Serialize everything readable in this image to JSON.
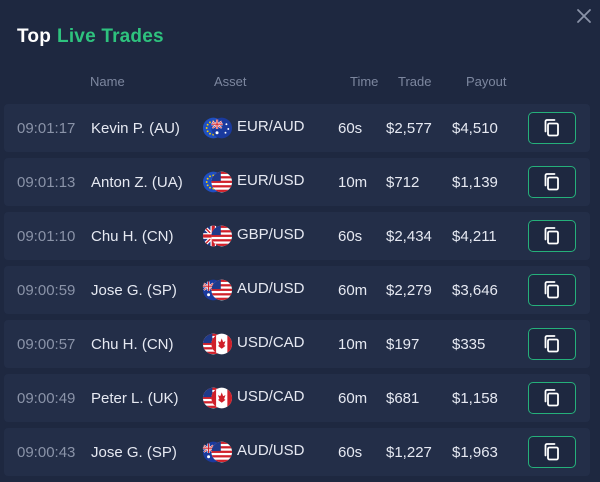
{
  "header": {
    "title_part1": "Top",
    "title_part2": "Live Trades"
  },
  "columns": {
    "name": "Name",
    "asset": "Asset",
    "time": "Time",
    "trade": "Trade",
    "payout": "Payout"
  },
  "rows": [
    {
      "time": "09:01:17",
      "name": "Kevin P. (AU)",
      "asset": "EUR/AUD",
      "duration": "60s",
      "trade": "$2,577",
      "payout": "$4,510",
      "flag_icon": "eur-aud-flag-icon"
    },
    {
      "time": "09:01:13",
      "name": "Anton Z. (UA)",
      "asset": "EUR/USD",
      "duration": "10m",
      "trade": "$712",
      "payout": "$1,139",
      "flag_icon": "eur-usd-flag-icon"
    },
    {
      "time": "09:01:10",
      "name": "Chu H. (CN)",
      "asset": "GBP/USD",
      "duration": "60s",
      "trade": "$2,434",
      "payout": "$4,211",
      "flag_icon": "gbp-usd-flag-icon"
    },
    {
      "time": "09:00:59",
      "name": "Jose G. (SP)",
      "asset": "AUD/USD",
      "duration": "60m",
      "trade": "$2,279",
      "payout": "$3,646",
      "flag_icon": "aud-usd-flag-icon"
    },
    {
      "time": "09:00:57",
      "name": "Chu H. (CN)",
      "asset": "USD/CAD",
      "duration": "10m",
      "trade": "$197",
      "payout": "$335",
      "flag_icon": "usd-cad-flag-icon"
    },
    {
      "time": "09:00:49",
      "name": "Peter L. (UK)",
      "asset": "USD/CAD",
      "duration": "60m",
      "trade": "$681",
      "payout": "$1,158",
      "flag_icon": "usd-cad-flag-icon"
    },
    {
      "time": "09:00:43",
      "name": "Jose G. (SP)",
      "asset": "AUD/USD",
      "duration": "60s",
      "trade": "$1,227",
      "payout": "$1,963",
      "flag_icon": "aud-usd-flag-icon"
    }
  ],
  "colors": {
    "background": "#1e2840",
    "row_bg": "#232e48",
    "accent": "#2ec27e",
    "muted": "#7d879f"
  }
}
